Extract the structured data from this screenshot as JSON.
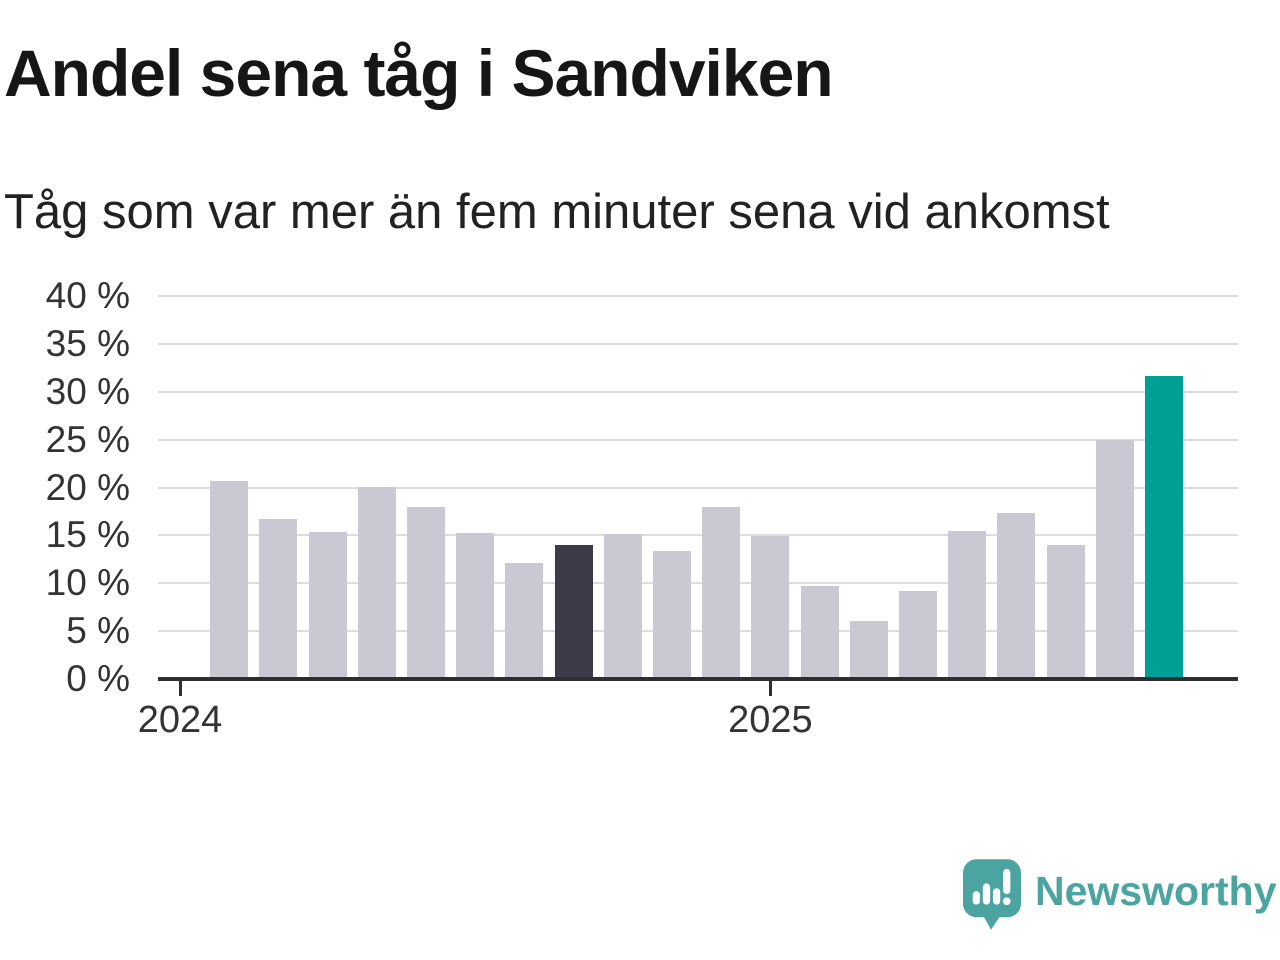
{
  "chart_data": {
    "type": "bar",
    "title": "Andel sena tåg i Sandviken",
    "subtitle": "Tåg som var mer än fem minuter sena vid ankomst",
    "unit": "%",
    "values": [
      20.7,
      16.7,
      15.4,
      20.1,
      18.0,
      15.2,
      12.1,
      14.0,
      15.1,
      13.4,
      18.0,
      14.9,
      9.7,
      6.1,
      9.2,
      15.5,
      17.3,
      14.0,
      25.0,
      31.6
    ],
    "dark_bar_index": 7,
    "highlight_bar_index": 19,
    "ylim": [
      0,
      40
    ],
    "ytick_step": 5,
    "ytick_labels": [
      "0 %",
      "5 %",
      "10 %",
      "15 %",
      "20 %",
      "25 %",
      "30 %",
      "35 %",
      "40 %"
    ],
    "xticks": [
      {
        "label": "2024",
        "slot": 0
      },
      {
        "label": "2025",
        "slot": 12
      }
    ],
    "first_bar_slot": 1,
    "grid": true,
    "legend_position": "none"
  },
  "colors": {
    "bar": "#C9C8D3",
    "bar_dark": "#3B3B4A",
    "bar_highlight": "#00A096",
    "grid": "#DCDCDC",
    "axis": "#2E2E2E",
    "brand": "#4BA4A0"
  },
  "branding": {
    "logo_text": "Newsworthy"
  }
}
